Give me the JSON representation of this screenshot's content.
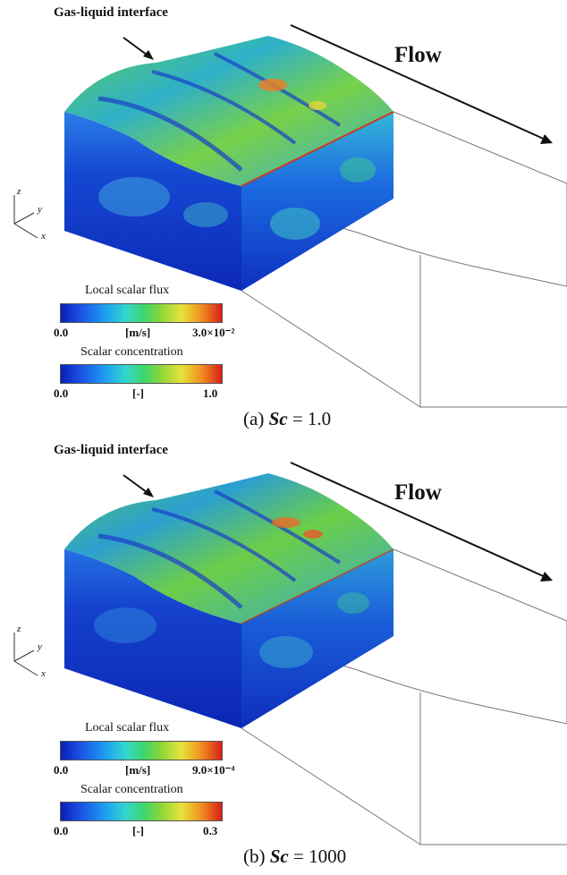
{
  "panels": [
    {
      "interface_label": "Gas-liquid interface",
      "flow_label": "Flow",
      "axes": {
        "z": "z",
        "y": "y",
        "x": "x"
      },
      "colorbars": [
        {
          "title": "Local scalar flux",
          "min": "0.0",
          "unit": "[m/s]",
          "max": "3.0×10⁻²"
        },
        {
          "title": "Scalar concentration",
          "min": "0.0",
          "unit": "[-]",
          "max": "1.0"
        }
      ],
      "caption_prefix": "(a)",
      "caption_var": "Sc",
      "caption_value": "= 1.0"
    },
    {
      "interface_label": "Gas-liquid interface",
      "flow_label": "Flow",
      "axes": {
        "z": "z",
        "y": "y",
        "x": "x"
      },
      "colorbars": [
        {
          "title": "Local scalar flux",
          "min": "0.0",
          "unit": "[m/s]",
          "max": "9.0×10⁻⁴"
        },
        {
          "title": "Scalar concentration",
          "min": "0.0",
          "unit": "[-]",
          "max": "0.3"
        }
      ],
      "caption_prefix": "(b)",
      "caption_var": "Sc",
      "caption_value": "= 1000"
    }
  ],
  "colors": {
    "low": "#0a1fb8",
    "mid": "#3fd66a",
    "high": "#d8201a"
  }
}
